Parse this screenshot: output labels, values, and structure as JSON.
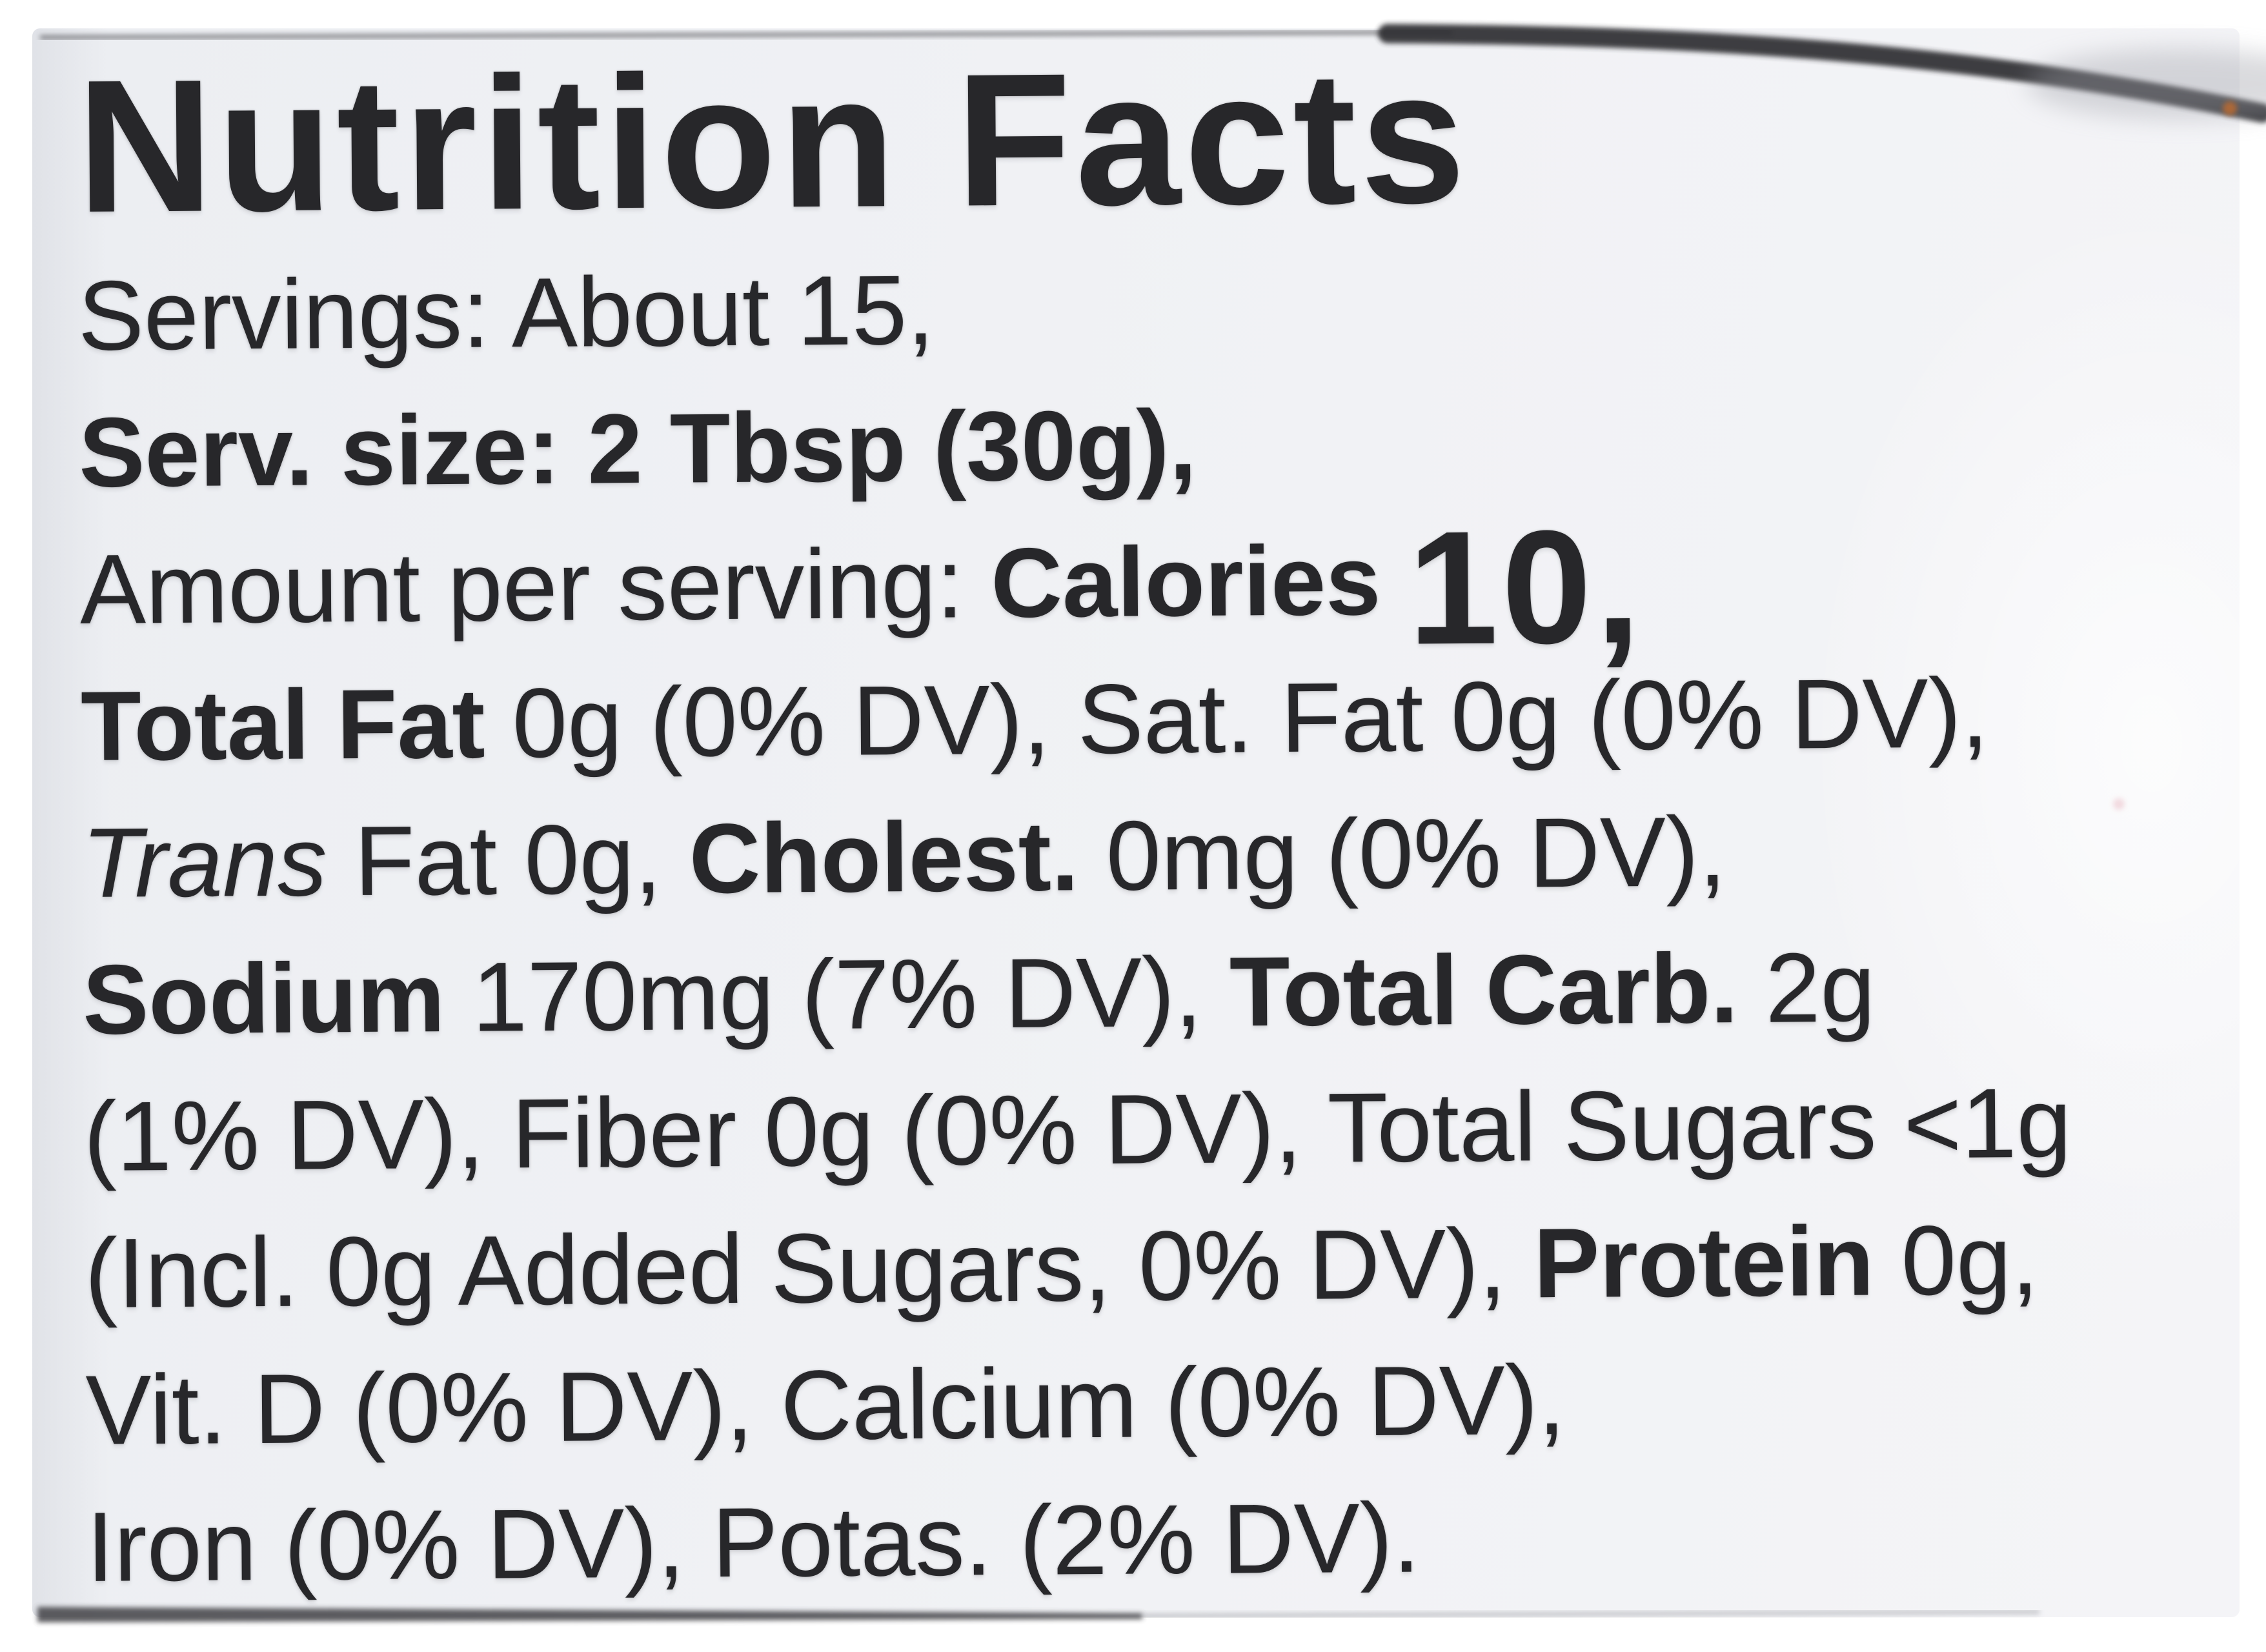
{
  "label": {
    "title": "Nutrition Facts",
    "rows": [
      {
        "name": "servings-line",
        "segments": [
          {
            "text": "Servings: About 15,",
            "style": "regular"
          }
        ]
      },
      {
        "name": "serving-size-line",
        "segments": [
          {
            "text": "Serv. size: 2 Tbsp (30g),",
            "style": "bold"
          }
        ]
      },
      {
        "name": "calories-line",
        "segments": [
          {
            "text": "Amount per serving: ",
            "style": "regular"
          },
          {
            "text": "Calories ",
            "style": "bold"
          },
          {
            "text": "10,",
            "style": "calories-big"
          }
        ]
      },
      {
        "name": "fat-line",
        "segments": [
          {
            "text": "Total Fat ",
            "style": "bold"
          },
          {
            "text": "0g (0% DV), Sat. Fat 0g (0% DV),",
            "style": "regular"
          }
        ]
      },
      {
        "name": "trans-cholesterol-line",
        "segments": [
          {
            "text": "Trans ",
            "style": "italic"
          },
          {
            "text": "Fat 0g, ",
            "style": "regular"
          },
          {
            "text": "Cholest. ",
            "style": "bold"
          },
          {
            "text": "0mg (0% DV),",
            "style": "regular"
          }
        ]
      },
      {
        "name": "sodium-carb-line",
        "segments": [
          {
            "text": "Sodium ",
            "style": "bold"
          },
          {
            "text": "170mg (7% DV), ",
            "style": "regular"
          },
          {
            "text": "Total Carb. ",
            "style": "bold"
          },
          {
            "text": "2g",
            "style": "regular"
          }
        ]
      },
      {
        "name": "fiber-sugars-line",
        "segments": [
          {
            "text": "(1% DV), Fiber 0g (0% DV), Total Sugars <1g",
            "style": "regular"
          }
        ]
      },
      {
        "name": "added-sugars-protein-line",
        "segments": [
          {
            "text": "(Incl. 0g Added Sugars, 0% DV), ",
            "style": "regular"
          },
          {
            "text": "Protein ",
            "style": "bold"
          },
          {
            "text": "0g,",
            "style": "regular"
          }
        ]
      },
      {
        "name": "vitd-calcium-line",
        "segments": [
          {
            "text": "Vit. D (0% DV), Calcium (0% DV),",
            "style": "regular"
          }
        ]
      },
      {
        "name": "iron-potassium-line",
        "segments": [
          {
            "text": "Iron (0% DV), Potas. (2% DV).",
            "style": "regular"
          }
        ]
      }
    ]
  },
  "facts": {
    "servings": "About 15",
    "serving_size": "2 Tbsp (30g)",
    "calories": "10",
    "total_fat": "0g (0% DV)",
    "saturated_fat": "0g (0% DV)",
    "trans_fat": "0g",
    "cholesterol": "0mg (0% DV)",
    "sodium": "170mg (7% DV)",
    "total_carbohydrate": "2g (1% DV)",
    "fiber": "0g (0% DV)",
    "total_sugars": "<1g",
    "added_sugars": "Incl. 0g Added Sugars, 0% DV",
    "protein": "0g",
    "vitamin_d": "0% DV",
    "calcium": "0% DV",
    "iron": "0% DV",
    "potassium": "2% DV"
  },
  "colors": {
    "page_background": "#ffffff",
    "label_background": "#f1f2f5",
    "text": "#27272a",
    "jar_edge": "#2e2e33"
  }
}
